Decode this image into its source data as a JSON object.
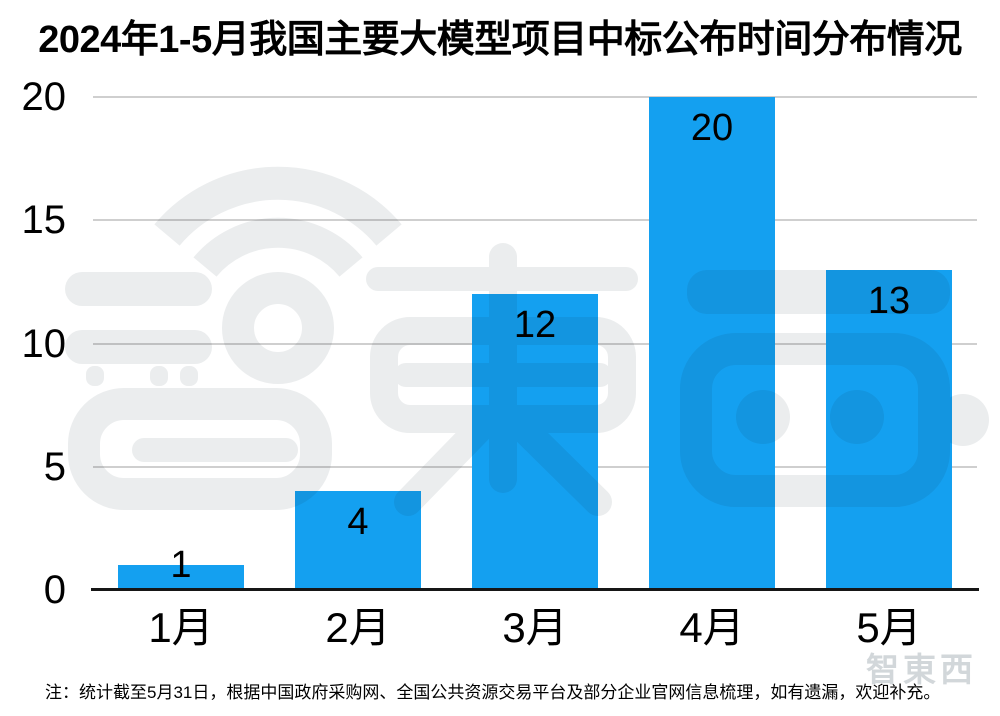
{
  "chart_data": {
    "type": "bar",
    "title": "2024年1-5月我国主要大模型项目中标公布时间分布情况",
    "categories": [
      "1月",
      "2月",
      "3月",
      "4月",
      "5月"
    ],
    "values": [
      1,
      4,
      12,
      20,
      13
    ],
    "xlabel": "",
    "ylabel": "",
    "ylim": [
      0,
      20
    ],
    "yticks": [
      0,
      5,
      10,
      15,
      20
    ],
    "grid": "horizontal",
    "legend_position": "none",
    "bar_color": "#14a0f0",
    "value_label_color": "#000000",
    "axis_color": "#161616",
    "gridline_color": "#cfcfcf"
  },
  "footer": {
    "note": "注：统计截至5月31日，根据中国政府采购网、全国公共资源交易平台及部分企业官网信息梳理，如有遗漏，欢迎补充。"
  },
  "watermark": {
    "text": "智東西",
    "color": "#ebedee"
  },
  "corner_logo": {
    "text": "智東西"
  }
}
